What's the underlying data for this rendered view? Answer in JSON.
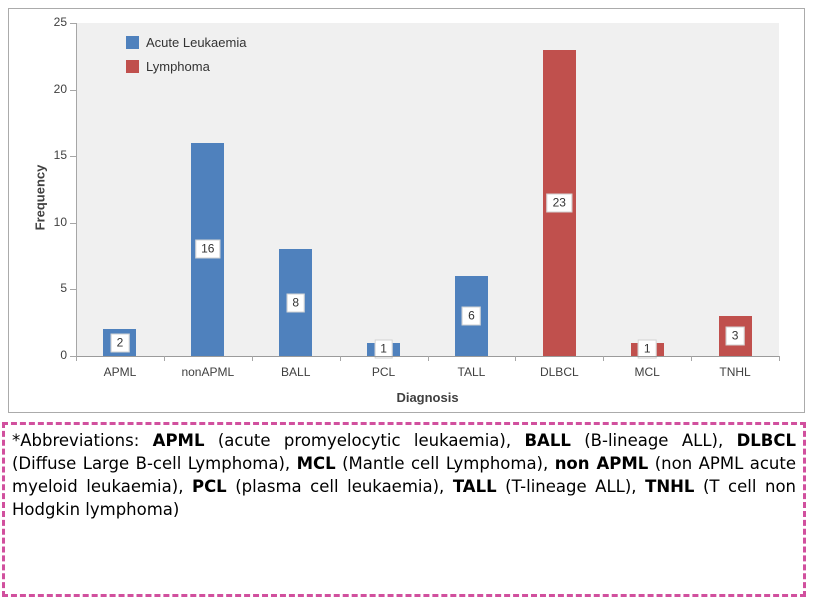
{
  "chart": {
    "plot_bg": "#F0F0F0",
    "axis_color": "#A6A6A6",
    "y_ticks": [
      0,
      5,
      10,
      15,
      20,
      25
    ],
    "legend": [
      {
        "label": "Acute Leukaemia",
        "color": "#4F81BD"
      },
      {
        "label": "Lymphoma",
        "color": "#C0504D"
      }
    ]
  },
  "chart_data": {
    "type": "bar",
    "title": "",
    "xlabel": "Diagnosis",
    "ylabel": "Frequency",
    "categories": [
      "APML",
      "nonAPML",
      "BALL",
      "PCL",
      "TALL",
      "DLBCL",
      "MCL",
      "TNHL"
    ],
    "values": [
      2,
      16,
      8,
      1,
      6,
      23,
      1,
      3
    ],
    "series": [
      {
        "name": "Acute Leukaemia",
        "color": "#4F81BD",
        "values": [
          2,
          16,
          8,
          1,
          6,
          null,
          null,
          null
        ]
      },
      {
        "name": "Lymphoma",
        "color": "#C0504D",
        "values": [
          null,
          null,
          null,
          null,
          null,
          23,
          1,
          3
        ]
      }
    ],
    "ylim": [
      0,
      25
    ],
    "grid": false,
    "data_labels": true,
    "legend_position": "top-left-inside"
  },
  "footnote": {
    "border_color": "#D1509E",
    "segments": [
      {
        "text": "*Abbreviations: ",
        "bold": false
      },
      {
        "text": "APML",
        "bold": true
      },
      {
        "text": " (acute promyelocytic leukaemia), ",
        "bold": false
      },
      {
        "text": "BALL",
        "bold": true
      },
      {
        "text": " (B-lineage ALL), ",
        "bold": false
      },
      {
        "text": "DLBCL",
        "bold": true
      },
      {
        "text": " (Diffuse Large B-cell Lymphoma), ",
        "bold": false
      },
      {
        "text": "MCL",
        "bold": true
      },
      {
        "text": " (Mantle cell Lymphoma), ",
        "bold": false
      },
      {
        "text": "non APML",
        "bold": true
      },
      {
        "text": " (non APML acute myeloid leukaemia), ",
        "bold": false
      },
      {
        "text": "PCL",
        "bold": true
      },
      {
        "text": " (plasma cell leukaemia), ",
        "bold": false
      },
      {
        "text": "TALL",
        "bold": true
      },
      {
        "text": " (T-lineage ALL), ",
        "bold": false
      },
      {
        "text": "TNHL",
        "bold": true
      },
      {
        "text": " (T cell non Hodgkin lymphoma)",
        "bold": false
      }
    ]
  }
}
